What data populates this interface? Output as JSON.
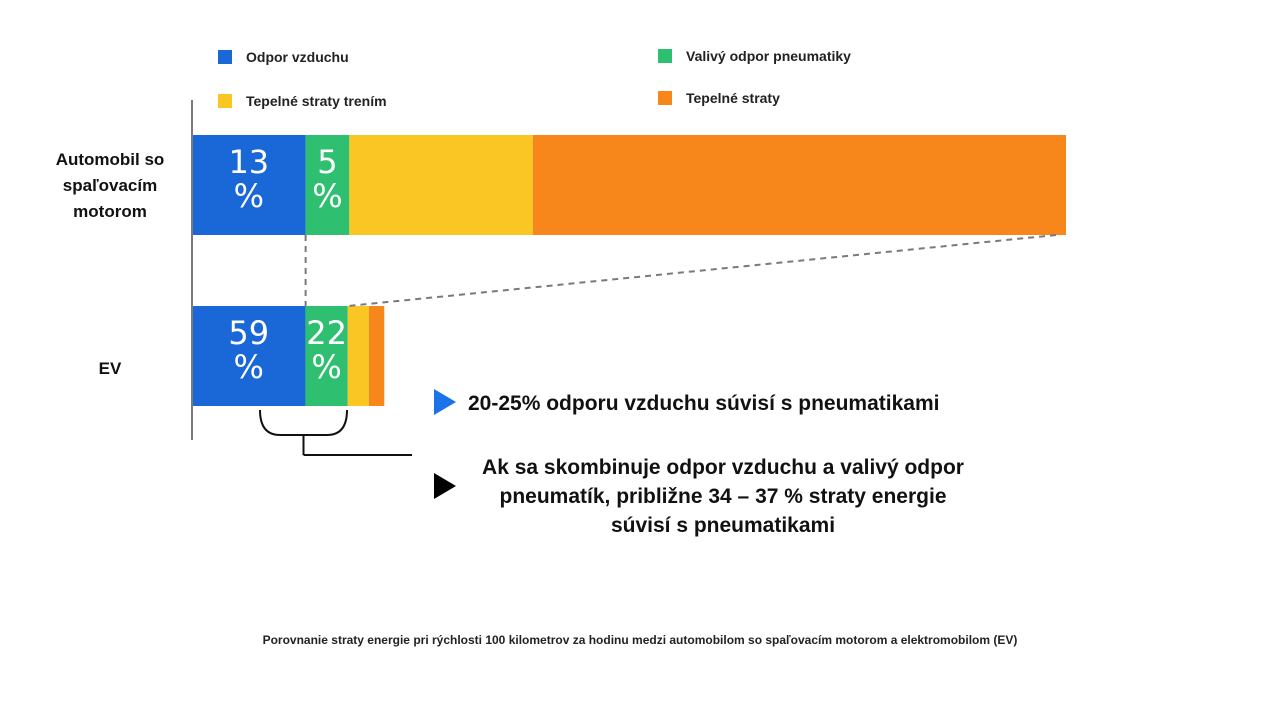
{
  "legend": [
    {
      "label": "Odpor vzduchu",
      "color": "#1a68d8"
    },
    {
      "label": "Valivý odpor pneumatiky",
      "color": "#2fbf71"
    },
    {
      "label": "Tepelné straty trením",
      "color": "#f9c623"
    },
    {
      "label": "Tepelné straty",
      "color": "#f7861b"
    }
  ],
  "rows": {
    "ice_label": "Automobil so spaľovacím motorom",
    "ev_label": "EV"
  },
  "chart_data": {
    "type": "bar",
    "orientation": "horizontal",
    "stacked": true,
    "categories": [
      "Automobil so spaľovacím motorom",
      "EV"
    ],
    "series": [
      {
        "name": "Odpor vzduchu",
        "values": [
          13,
          59
        ],
        "labels": [
          "13 %",
          "59 %"
        ],
        "color": "#1a68d8"
      },
      {
        "name": "Valivý odpor pneumatiky",
        "values": [
          5,
          22
        ],
        "labels": [
          "5 %",
          "22 %"
        ],
        "color": "#2fbf71"
      },
      {
        "name": "Tepelné straty trením",
        "values": [
          21,
          11
        ],
        "labels": [
          "",
          ""
        ],
        "color": "#f9c623"
      },
      {
        "name": "Tepelné straty",
        "values": [
          61,
          8
        ],
        "labels": [
          "",
          ""
        ],
        "color": "#f7861b"
      }
    ],
    "ev_total_relative_to_ice": 0.22,
    "legend_position": "top",
    "grid": false
  },
  "notes": {
    "note1": "20-25% odporu vzduchu súvisí s pneumatikami",
    "note2": "Ak sa skombinuje odpor vzduchu a valivý odpor pneumatík, približne 34 – 37 % straty energie súvisí s pneumatikami"
  },
  "caption": "Porovnanie straty energie pri rýchlosti 100 kilometrov za hodinu medzi automobilom so spaľovacím motorom a elektromobilom (EV)"
}
